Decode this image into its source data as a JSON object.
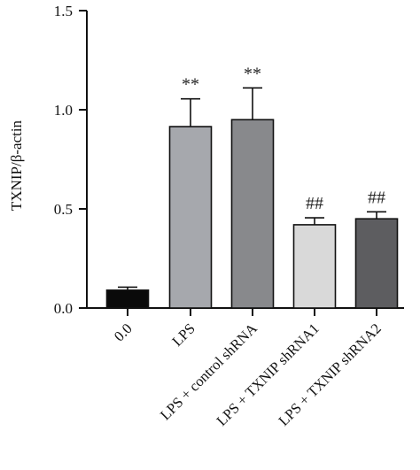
{
  "chart_data": {
    "type": "bar",
    "categories": [
      "0.0",
      "LPS",
      "LPS + control shRNA",
      "LPS + TXNIP shRNA1",
      "LPS + TXNIP shRNA2"
    ],
    "values": [
      0.09,
      0.915,
      0.95,
      0.42,
      0.45
    ],
    "errors": [
      0.015,
      0.14,
      0.16,
      0.035,
      0.035
    ],
    "annotations": [
      "",
      "**",
      "**",
      "##",
      "##"
    ],
    "bar_colors": [
      "#0a0a0a",
      "#a6a8ad",
      "#88898c",
      "#d9d9d9",
      "#5d5d60"
    ],
    "ylabel": "TXNIP/β-actin",
    "xlabel": "",
    "ylim": [
      0,
      1.5
    ],
    "yticks": [
      "0.0",
      "0.5",
      "1.0",
      "1.5"
    ],
    "title": ""
  }
}
